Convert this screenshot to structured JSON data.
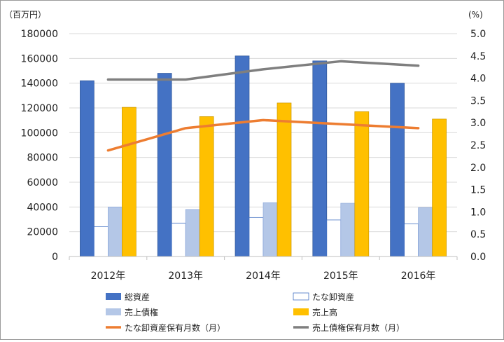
{
  "chart_data": {
    "type": "bar",
    "categories": [
      "2012年",
      "2013年",
      "2014年",
      "2015年",
      "2016年"
    ],
    "left_axis": {
      "unit": "（百万円）",
      "ylim": [
        0,
        180000
      ],
      "ticks": [
        "0",
        "20000",
        "40000",
        "60000",
        "80000",
        "100000",
        "120000",
        "140000",
        "160000",
        "180000"
      ]
    },
    "right_axis": {
      "unit": "(%)",
      "ylim": [
        0,
        5.0
      ],
      "ticks": [
        "0.0",
        "0.5",
        "1.0",
        "1.5",
        "2.0",
        "2.5",
        "3.0",
        "3.5",
        "4.0",
        "4.5",
        "5.0"
      ]
    },
    "series": [
      {
        "name": "総資産",
        "type": "bar",
        "axis": "left",
        "color": "#4472c4",
        "values": [
          142000,
          148000,
          162000,
          158000,
          140000
        ]
      },
      {
        "name": "たな卸資産",
        "type": "bar",
        "axis": "left",
        "color": "#ffffff",
        "values": [
          24000,
          27000,
          31500,
          29500,
          26500
        ]
      },
      {
        "name": "売上債権",
        "type": "bar",
        "axis": "left",
        "color": "#b4c7e7",
        "values": [
          40000,
          38000,
          43500,
          43000,
          39500
        ]
      },
      {
        "name": "売上高",
        "type": "bar",
        "axis": "left",
        "color": "#ffc000",
        "values": [
          120500,
          113000,
          124000,
          117000,
          111000
        ]
      },
      {
        "name": "たな卸資産保有月数（月）",
        "type": "line",
        "axis": "right",
        "color": "#ed7d31",
        "values": [
          2.38,
          2.88,
          3.06,
          2.97,
          2.88
        ]
      },
      {
        "name": "売上債権保有月数（月）",
        "type": "line",
        "axis": "right",
        "color": "#7f7f7f",
        "values": [
          3.97,
          3.97,
          4.2,
          4.38,
          4.28
        ]
      }
    ],
    "grid": true,
    "legend_position": "bottom"
  }
}
